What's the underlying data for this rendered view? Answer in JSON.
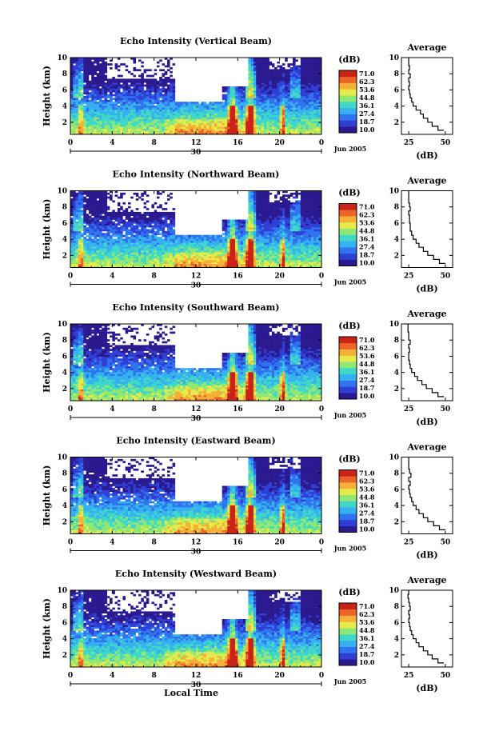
{
  "x_axis_label": "Local Time",
  "colorbar": {
    "unit": "(dB)",
    "ticks": [
      "71.0",
      "62.3",
      "53.6",
      "44.8",
      "36.1",
      "27.4",
      "18.7",
      "10.0"
    ],
    "colors": [
      "#2b1a8f",
      "#2f3fd6",
      "#2f74ee",
      "#35b0f0",
      "#3fd8c8",
      "#8fe873",
      "#e6ea4a",
      "#f5b038",
      "#ec6427",
      "#c92316"
    ]
  },
  "chart_data": [
    {
      "type": "heatmap",
      "title": "Echo Intensity (Vertical Beam)",
      "ylabel": "Height (km)",
      "xlabel": "",
      "x_ticks": [
        "0",
        "4",
        "8",
        "12",
        "16",
        "20",
        "0"
      ],
      "y_ticks": [
        "2",
        "4",
        "6",
        "8",
        "10"
      ],
      "xlim": [
        0,
        24
      ],
      "ylim": [
        0.5,
        10
      ],
      "date_label": "30",
      "month_label": "Jun 2005",
      "avg_panel": {
        "title": "Average",
        "xlabel": "(dB)",
        "x_ticks": [
          "25",
          "50"
        ],
        "xlim": [
          20,
          55
        ],
        "ylim": [
          0.5,
          10
        ],
        "heights": [
          1.0,
          1.5,
          2.0,
          2.5,
          3.0,
          3.5,
          4.0,
          4.5,
          5.0,
          5.5,
          6.0,
          6.5,
          7.0,
          7.5,
          8.0,
          8.5,
          9.0,
          9.5,
          10.0
        ],
        "values": [
          49,
          45,
          41,
          38,
          35,
          33,
          30,
          28,
          27,
          26,
          25.5,
          25,
          25.5,
          25,
          26,
          25,
          25.5,
          25,
          25
        ]
      }
    },
    {
      "type": "heatmap",
      "title": "Echo Intensity (Northward Beam)",
      "ylabel": "Height (km)",
      "xlabel": "",
      "x_ticks": [
        "0",
        "4",
        "8",
        "12",
        "16",
        "20",
        "0"
      ],
      "y_ticks": [
        "2",
        "4",
        "6",
        "8",
        "10"
      ],
      "xlim": [
        0,
        24
      ],
      "ylim": [
        0.5,
        10
      ],
      "date_label": "30",
      "month_label": "Jun 2005",
      "avg_panel": {
        "title": "Average",
        "xlabel": "(dB)",
        "x_ticks": [
          "25",
          "50"
        ],
        "xlim": [
          20,
          55
        ],
        "ylim": [
          0.5,
          10
        ],
        "heights": [
          1.0,
          1.5,
          2.0,
          2.5,
          3.0,
          3.5,
          4.0,
          4.5,
          5.0,
          5.5,
          6.0,
          6.5,
          7.0,
          7.5,
          8.0,
          8.5,
          9.0,
          9.5,
          10.0
        ],
        "values": [
          50,
          46,
          42,
          38,
          35,
          32,
          30,
          28,
          27,
          26,
          26,
          25.5,
          25.5,
          25,
          26,
          25.5,
          25,
          25,
          25
        ]
      }
    },
    {
      "type": "heatmap",
      "title": "Echo Intensity (Southward Beam)",
      "ylabel": "Height (km)",
      "xlabel": "",
      "x_ticks": [
        "0",
        "4",
        "8",
        "12",
        "16",
        "20",
        "0"
      ],
      "y_ticks": [
        "2",
        "4",
        "6",
        "8",
        "10"
      ],
      "xlim": [
        0,
        24
      ],
      "ylim": [
        0.5,
        10
      ],
      "date_label": "30",
      "month_label": "Jun 2005",
      "avg_panel": {
        "title": "Average",
        "xlabel": "(dB)",
        "x_ticks": [
          "25",
          "50"
        ],
        "xlim": [
          20,
          55
        ],
        "ylim": [
          0.5,
          10
        ],
        "heights": [
          1.0,
          1.5,
          2.0,
          2.5,
          3.0,
          3.5,
          4.0,
          4.5,
          5.0,
          5.5,
          6.0,
          6.5,
          7.0,
          7.5,
          8.0,
          8.5,
          9.0,
          9.5,
          10.0
        ],
        "values": [
          49,
          45,
          41,
          37,
          34,
          31,
          29,
          27,
          26,
          25.5,
          25,
          25,
          25.5,
          25,
          26,
          25,
          25,
          24.5,
          24.5
        ]
      }
    },
    {
      "type": "heatmap",
      "title": "Echo Intensity (Eastward Beam)",
      "ylabel": "Height (km)",
      "xlabel": "",
      "x_ticks": [
        "0",
        "4",
        "8",
        "12",
        "16",
        "20",
        "0"
      ],
      "y_ticks": [
        "2",
        "4",
        "6",
        "8",
        "10"
      ],
      "xlim": [
        0,
        24
      ],
      "ylim": [
        0.5,
        10
      ],
      "date_label": "30",
      "month_label": "Jun 2005",
      "avg_panel": {
        "title": "Average",
        "xlabel": "(dB)",
        "x_ticks": [
          "25",
          "50"
        ],
        "xlim": [
          20,
          55
        ],
        "ylim": [
          0.5,
          10
        ],
        "heights": [
          1.0,
          1.5,
          2.0,
          2.5,
          3.0,
          3.5,
          4.0,
          4.5,
          5.0,
          5.5,
          6.0,
          6.5,
          7.0,
          7.5,
          8.0,
          8.5,
          9.0,
          9.5,
          10.0
        ],
        "values": [
          50,
          46,
          42,
          38,
          35,
          32,
          30,
          28,
          27,
          26,
          25.5,
          25,
          26,
          25,
          26.5,
          25.5,
          25,
          25,
          25
        ]
      }
    },
    {
      "type": "heatmap",
      "title": "Echo Intensity (Westward Beam)",
      "ylabel": "Height (km)",
      "xlabel": "Local Time",
      "x_ticks": [
        "0",
        "4",
        "8",
        "12",
        "16",
        "20",
        "0"
      ],
      "y_ticks": [
        "2",
        "4",
        "6",
        "8",
        "10"
      ],
      "xlim": [
        0,
        24
      ],
      "ylim": [
        0.5,
        10
      ],
      "date_label": "30",
      "month_label": "Jun 2005",
      "avg_panel": {
        "title": "Average",
        "xlabel": "(dB)",
        "x_ticks": [
          "25",
          "50"
        ],
        "xlim": [
          20,
          55
        ],
        "ylim": [
          0.5,
          10
        ],
        "heights": [
          1.0,
          1.5,
          2.0,
          2.5,
          3.0,
          3.5,
          4.0,
          4.5,
          5.0,
          5.5,
          6.0,
          6.5,
          7.0,
          7.5,
          8.0,
          8.5,
          9.0,
          9.5,
          10.0
        ],
        "values": [
          49,
          45,
          41,
          38,
          35,
          32,
          30,
          28,
          27,
          26,
          25.5,
          25,
          25.5,
          25,
          26,
          25.5,
          25,
          24.5,
          25
        ]
      }
    }
  ]
}
